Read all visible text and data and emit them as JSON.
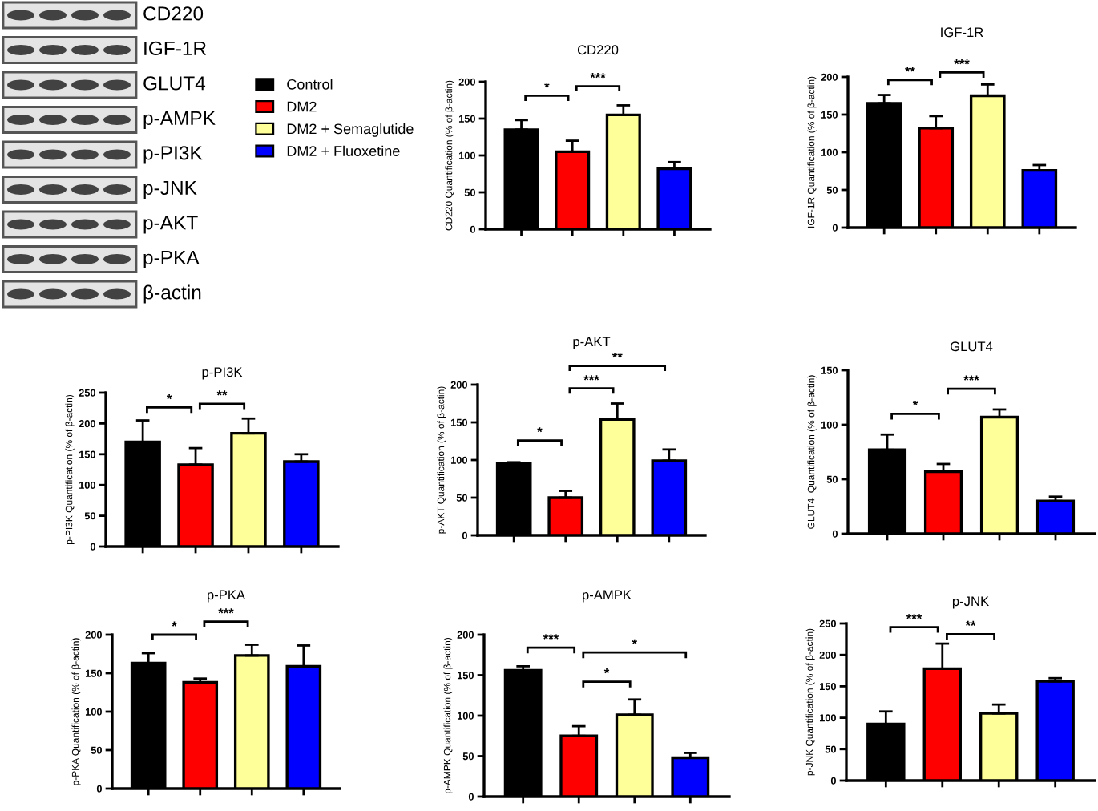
{
  "chart_data": [
    {
      "type": "other",
      "annotations": [
        "CD220",
        "IGF-1R",
        "GLUT4",
        "p-AMPK",
        "p-PI3K",
        "p-JNK",
        "p-AKT",
        "p-PKA",
        "β-actin"
      ]
    },
    {
      "type": "bar",
      "title": "CD220",
      "ylabel": "CD220 Quantification (% of β-actin)",
      "categories": [
        null,
        null,
        null,
        null
      ],
      "stacked": true,
      "legend": "left",
      "series": [
        {
          "name": "Control",
          "color": "#000000",
          "values": [
            135,
            null,
            null,
            null
          ],
          "errors": [
            [
              135,
              148
            ],
            null,
            null,
            null
          ]
        },
        {
          "name": "DM2",
          "color": "#ff0000",
          "values": [
            null,
            105,
            null,
            null
          ],
          "errors": [
            null,
            [
              105,
              120
            ],
            null,
            null
          ]
        },
        {
          "name": "DM2 + Semaglutide",
          "color": "#ffff99",
          "values": [
            null,
            null,
            155,
            null
          ],
          "errors": [
            null,
            null,
            [
              155,
              168
            ],
            null
          ]
        },
        {
          "name": "DM2 + Fluoxetine",
          "color": "#0000ff",
          "values": [
            null,
            null,
            null,
            82
          ],
          "errors": [
            null,
            null,
            null,
            [
              82,
              91
            ]
          ]
        }
      ],
      "ylim": [
        0,
        200
      ],
      "yticks": [
        0,
        50,
        100,
        150,
        200
      ],
      "tick_labels": "y",
      "annotations": [
        "*",
        "***"
      ]
    },
    {
      "type": "bar",
      "title": "IGF-1R",
      "ylabel": "IGF-1R Quantification (% of β-actin)",
      "categories": [
        null,
        null,
        null,
        null
      ],
      "values": [
        165,
        132,
        175,
        76
      ],
      "colors": [
        "#000000",
        "#ff0000",
        "#ffff99",
        "#0000ff"
      ],
      "errors": [
        [
          165,
          176
        ],
        [
          132,
          148
        ],
        [
          175,
          190
        ],
        [
          76,
          83
        ]
      ],
      "ylim": [
        0,
        200
      ],
      "yticks": [
        0,
        50,
        100,
        150,
        200
      ],
      "tick_labels": "y",
      "annotations": [
        "**",
        "***"
      ]
    },
    {
      "type": "bar",
      "title": "p-PI3K",
      "ylabel": "p-PI3K Quantification (% of β-actin)",
      "categories": [
        null,
        null,
        null,
        null
      ],
      "values": [
        170,
        133,
        184,
        138
      ],
      "colors": [
        "#000000",
        "#ff0000",
        "#ffff99",
        "#0000ff"
      ],
      "errors": [
        [
          170,
          205
        ],
        [
          133,
          160
        ],
        [
          184,
          208
        ],
        [
          138,
          150
        ]
      ],
      "ylim": [
        0,
        250
      ],
      "yticks": [
        0,
        50,
        100,
        150,
        200,
        250
      ],
      "tick_labels": "y",
      "annotations": [
        "*",
        "**"
      ]
    },
    {
      "type": "bar",
      "title": "p-AKT",
      "ylabel": "p-AKT Quantification (% of β-actin)",
      "categories": [
        null,
        null,
        null,
        null
      ],
      "values": [
        95,
        50,
        154,
        99
      ],
      "colors": [
        "#000000",
        "#ff0000",
        "#ffff99",
        "#0000ff"
      ],
      "errors": [
        [
          95,
          97
        ],
        [
          50,
          59
        ],
        [
          154,
          175
        ],
        [
          99,
          114
        ]
      ],
      "ylim": [
        0,
        200
      ],
      "yticks": [
        0,
        50,
        100,
        150,
        200
      ],
      "tick_labels": "y",
      "annotations": [
        "*",
        "***",
        "**"
      ]
    },
    {
      "type": "bar",
      "title": "GLUT4",
      "ylabel": "GLUT4  Quantification (% of β-actin)",
      "categories": [
        null,
        null,
        null,
        null
      ],
      "values": [
        77,
        57,
        107,
        30
      ],
      "colors": [
        "#000000",
        "#ff0000",
        "#ffff99",
        "#0000ff"
      ],
      "errors": [
        [
          77,
          91
        ],
        [
          57,
          64
        ],
        [
          107,
          114
        ],
        [
          30,
          34
        ]
      ],
      "ylim": [
        0,
        150
      ],
      "yticks": [
        0,
        50,
        100,
        150
      ],
      "tick_labels": "y",
      "annotations": [
        "*",
        "***"
      ]
    },
    {
      "type": "bar",
      "title": "p-PKA",
      "ylabel": "p-PKA Quantification (% of β-actin)",
      "categories": [
        null,
        null,
        null,
        null
      ],
      "values": [
        163,
        138,
        173,
        159
      ],
      "colors": [
        "#000000",
        "#ff0000",
        "#ffff99",
        "#0000ff"
      ],
      "errors": [
        [
          163,
          176
        ],
        [
          138,
          143
        ],
        [
          173,
          187
        ],
        [
          159,
          186
        ]
      ],
      "ylim": [
        0,
        200
      ],
      "yticks": [
        0,
        50,
        100,
        150,
        200
      ],
      "tick_labels": "y",
      "annotations": [
        "*",
        "***"
      ]
    },
    {
      "type": "bar",
      "title": "p-AMPK",
      "ylabel": "p-AMPK Quantification (% of β-actin)",
      "categories": [
        null,
        null,
        null,
        null
      ],
      "values": [
        156,
        75,
        101,
        48
      ],
      "colors": [
        "#000000",
        "#ff0000",
        "#ffff99",
        "#0000ff"
      ],
      "errors": [
        [
          156,
          161
        ],
        [
          75,
          87
        ],
        [
          101,
          120
        ],
        [
          48,
          54
        ]
      ],
      "ylim": [
        0,
        200
      ],
      "yticks": [
        0,
        50,
        100,
        150,
        200
      ],
      "tick_labels": "y",
      "annotations": [
        "***",
        "*",
        "*"
      ]
    },
    {
      "type": "bar",
      "title": "p-JNK",
      "ylabel": "p-JNK Quantification (% of β-actin)",
      "categories": [
        null,
        null,
        null,
        null
      ],
      "values": [
        90,
        178,
        107,
        158
      ],
      "colors": [
        "#000000",
        "#ff0000",
        "#ffff99",
        "#0000ff"
      ],
      "errors": [
        [
          90,
          110
        ],
        [
          178,
          218
        ],
        [
          107,
          121
        ],
        [
          158,
          163
        ]
      ],
      "ylim": [
        0,
        250
      ],
      "yticks": [
        0,
        50,
        100,
        150,
        200,
        250
      ],
      "tick_labels": "y",
      "annotations": [
        "***",
        "**"
      ]
    }
  ]
}
